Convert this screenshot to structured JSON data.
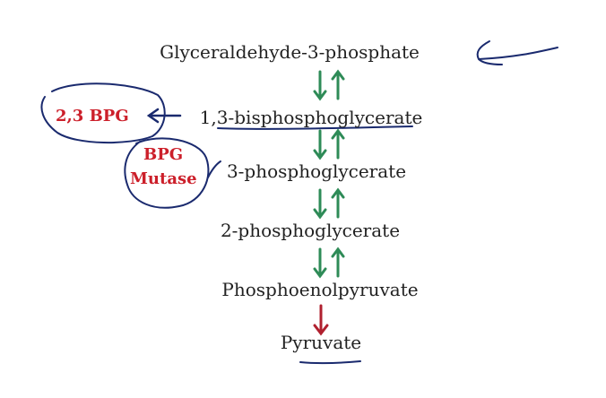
{
  "pathway": [
    {
      "id": "g3p",
      "label": "Glyceraldehyde-3-phosphate"
    },
    {
      "id": "bpg13",
      "label": "1,3-bisphosphoglycerate"
    },
    {
      "id": "pg3",
      "label": "3-phosphoglycerate"
    },
    {
      "id": "pg2",
      "label": "2-phosphoglycerate"
    },
    {
      "id": "pep",
      "label": "Phosphoenolpyruvate"
    },
    {
      "id": "pyr",
      "label": "Pyruvate"
    }
  ],
  "shunt": {
    "product": "2,3 BPG",
    "enzyme_line1": "BPG",
    "enzyme_line2": "Mutase"
  },
  "colors": {
    "reversible_arrow": "#2e8b57",
    "irreversible_arrow": "#b0202f",
    "annotation_ink": "#1a2a6e",
    "shunt_text": "#cc1f2a",
    "text": "#222222"
  }
}
